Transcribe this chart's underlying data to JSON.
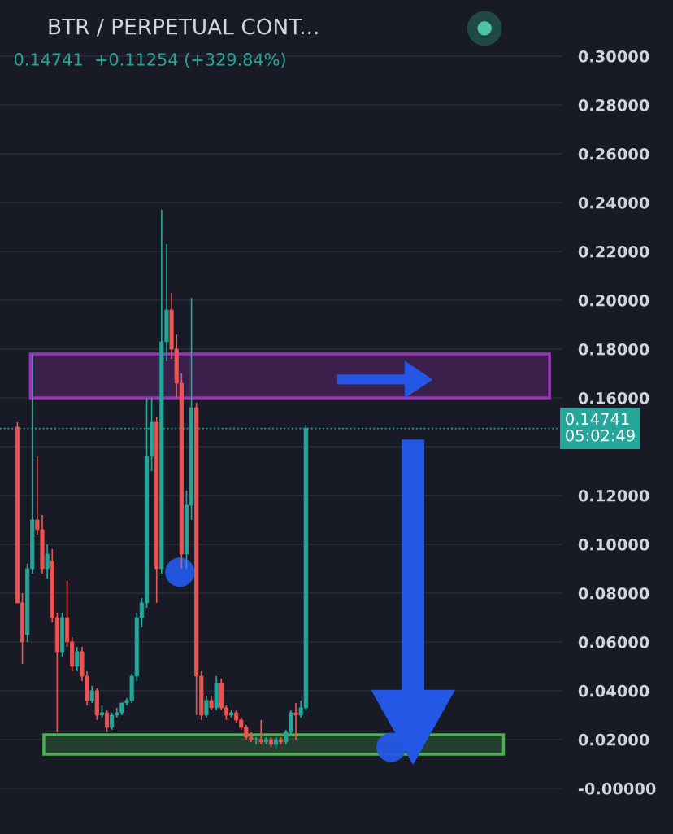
{
  "chart_data": {
    "type": "candlestick",
    "title": "BTR / PERPETUAL CONT...",
    "subtitle": "0.14741  +0.11254 (+329.84%)",
    "categories": [
      null,
      null,
      null,
      null,
      null,
      null,
      null,
      null,
      null,
      null,
      null,
      null,
      null,
      null,
      null,
      null,
      null,
      null,
      null,
      null,
      null,
      null,
      null,
      null,
      null,
      null,
      null,
      null,
      null,
      null,
      null,
      null,
      null,
      null,
      null,
      null,
      null,
      null,
      null,
      null,
      null,
      null,
      null,
      null,
      null,
      null,
      null,
      null,
      null,
      null,
      null,
      null,
      null,
      null,
      null,
      null,
      null,
      null,
      null,
      null,
      null,
      null,
      null,
      null,
      null,
      null,
      null,
      null,
      null,
      null,
      null,
      null,
      null,
      null,
      null,
      null,
      null,
      null,
      null,
      null,
      null,
      null,
      null,
      null,
      null,
      null,
      null,
      null,
      null,
      null,
      null,
      null,
      null,
      null,
      null,
      null,
      null,
      null,
      null,
      null,
      null,
      null,
      null,
      null,
      null,
      null,
      null,
      null,
      null,
      null,
      null,
      null,
      null
    ],
    "ohlc": [
      null,
      null,
      null,
      [
        0.148,
        0.15,
        0.076,
        0.076
      ],
      [
        0.076,
        0.08,
        0.051,
        0.06
      ],
      [
        0.063,
        0.092,
        0.06,
        0.09
      ],
      [
        0.09,
        0.178,
        0.088,
        0.11
      ],
      [
        0.11,
        0.136,
        0.104,
        0.106
      ],
      [
        0.106,
        0.112,
        0.088,
        0.09
      ],
      [
        0.09,
        0.1,
        0.086,
        0.096
      ],
      [
        0.093,
        0.098,
        0.068,
        0.07
      ],
      [
        0.07,
        0.072,
        0.023,
        0.056
      ],
      [
        0.056,
        0.072,
        0.054,
        0.07
      ],
      [
        0.07,
        0.085,
        0.058,
        0.06
      ],
      [
        0.06,
        0.062,
        0.048,
        0.05
      ],
      [
        0.05,
        0.058,
        0.048,
        0.056
      ],
      [
        0.056,
        0.058,
        0.044,
        0.046
      ],
      [
        0.046,
        0.048,
        0.034,
        0.036
      ],
      [
        0.036,
        0.042,
        0.035,
        0.04
      ],
      [
        0.04,
        0.041,
        0.028,
        0.03
      ],
      [
        0.03,
        0.034,
        0.029,
        0.031
      ],
      [
        0.031,
        0.032,
        0.023,
        0.025
      ],
      [
        0.025,
        0.031,
        0.024,
        0.03
      ],
      [
        0.03,
        0.033,
        0.029,
        0.031
      ],
      [
        0.031,
        0.035,
        0.03,
        0.035
      ],
      [
        0.035,
        0.037,
        0.034,
        0.036
      ],
      [
        0.036,
        0.047,
        0.035,
        0.046
      ],
      [
        0.046,
        0.072,
        0.044,
        0.07
      ],
      [
        0.07,
        0.078,
        0.066,
        0.076
      ],
      [
        0.076,
        0.16,
        0.074,
        0.136
      ],
      [
        0.136,
        0.16,
        0.13,
        0.15
      ],
      [
        0.15,
        0.152,
        0.076,
        0.09
      ],
      [
        0.09,
        0.237,
        0.088,
        0.183
      ],
      [
        0.183,
        0.223,
        0.175,
        0.196
      ],
      [
        0.196,
        0.203,
        0.176,
        0.18
      ],
      [
        0.18,
        0.186,
        0.16,
        0.166
      ],
      [
        0.166,
        0.17,
        0.09,
        0.096
      ],
      [
        0.096,
        0.122,
        0.09,
        0.116
      ],
      [
        0.116,
        0.201,
        0.11,
        0.156
      ],
      [
        0.156,
        0.158,
        0.03,
        0.046
      ],
      [
        0.046,
        0.048,
        0.028,
        0.03
      ],
      [
        0.03,
        0.038,
        0.029,
        0.036
      ],
      [
        0.036,
        0.038,
        0.032,
        0.033
      ],
      [
        0.033,
        0.046,
        0.032,
        0.043
      ],
      [
        0.043,
        0.045,
        0.032,
        0.033
      ],
      [
        0.033,
        0.034,
        0.028,
        0.03
      ],
      [
        0.03,
        0.032,
        0.029,
        0.031
      ],
      [
        0.031,
        0.032,
        0.027,
        0.028
      ],
      [
        0.028,
        0.029,
        0.024,
        0.025
      ],
      [
        0.025,
        0.026,
        0.02,
        0.021
      ],
      [
        0.021,
        0.023,
        0.019,
        0.02
      ],
      [
        0.02,
        0.021,
        0.018,
        0.02
      ],
      [
        0.02,
        0.028,
        0.018,
        0.019
      ],
      [
        0.019,
        0.021,
        0.018,
        0.02
      ],
      [
        0.02,
        0.021,
        0.017,
        0.018
      ],
      [
        0.018,
        0.021,
        0.016,
        0.02
      ],
      [
        0.02,
        0.021,
        0.018,
        0.019
      ],
      [
        0.019,
        0.024,
        0.018,
        0.023
      ],
      [
        0.023,
        0.032,
        0.022,
        0.031
      ],
      [
        0.031,
        0.035,
        0.02,
        0.03
      ],
      [
        0.03,
        0.036,
        0.029,
        0.033
      ],
      [
        0.033,
        0.149,
        0.032,
        0.14741
      ],
      null,
      null,
      null,
      null,
      null,
      null,
      null,
      null,
      null,
      null,
      null,
      null,
      null,
      null,
      null,
      null,
      null,
      null,
      null,
      null,
      null,
      null,
      null,
      null,
      null,
      null,
      null,
      null,
      null,
      null,
      null,
      null,
      null,
      null,
      null,
      null,
      null,
      null,
      null,
      null,
      null,
      null,
      null,
      null,
      null,
      null,
      null,
      null,
      null,
      null,
      null
    ],
    "colors": [
      null,
      null,
      null,
      "#ef5350",
      "#ef5350",
      "#26a69a",
      "#26a69a",
      "#ef5350",
      "#ef5350",
      "#26a69a",
      "#ef5350",
      "#ef5350",
      "#26a69a",
      "#ef5350",
      "#ef5350",
      "#26a69a",
      "#ef5350",
      "#ef5350",
      "#26a69a",
      "#ef5350",
      "#26a69a",
      "#ef5350",
      "#26a69a",
      "#26a69a",
      "#26a69a",
      "#26a69a",
      "#26a69a",
      "#26a69a",
      "#26a69a",
      "#26a69a",
      "#26a69a",
      "#ef5350",
      "#26a69a",
      "#26a69a",
      "#ef5350",
      "#ef5350",
      "#ef5350",
      "#26a69a",
      "#26a69a",
      "#ef5350",
      "#ef5350",
      "#26a69a",
      "#ef5350",
      "#26a69a",
      "#ef5350",
      "#ef5350",
      "#26a69a",
      "#ef5350",
      "#ef5350",
      "#ef5350",
      "#ef5350",
      "#26a69a",
      "#ef5350",
      "#26a69a",
      "#ef5350",
      "#26a69a",
      "#ef5350",
      "#26a69a",
      "#26a69a",
      "#ef5350",
      "#26a69a",
      "#26a69a",
      null,
      null,
      null,
      null,
      null,
      null,
      null,
      null,
      null,
      null,
      null,
      null,
      null,
      null,
      null,
      null,
      null,
      null,
      null,
      null,
      null,
      null,
      null,
      null,
      null,
      null,
      null,
      null,
      null,
      null,
      null,
      null,
      null,
      null,
      null,
      null,
      null,
      null,
      null,
      null,
      null,
      null,
      null,
      null,
      null,
      null,
      null,
      null,
      null,
      null,
      null
    ],
    "ylim": [
      -0.0187,
      0.323
    ],
    "yticks": [
      {
        "value": 0,
        "label": "-0.00000"
      },
      {
        "value": 0.02,
        "label": "0.02000"
      },
      {
        "value": 0.04,
        "label": "0.04000"
      },
      {
        "value": 0.06,
        "label": "0.06000"
      },
      {
        "value": 0.08,
        "label": "0.08000"
      },
      {
        "value": 0.1,
        "label": "0.10000"
      },
      {
        "value": 0.12,
        "label": "0.12000"
      },
      {
        "value": 0.14,
        "label": null
      },
      {
        "value": 0.16,
        "label": "0.16000"
      },
      {
        "value": 0.18,
        "label": "0.18000"
      },
      {
        "value": 0.2,
        "label": "0.20000"
      },
      {
        "value": 0.22,
        "label": "0.22000"
      },
      {
        "value": 0.24,
        "label": "0.24000"
      },
      {
        "value": 0.26,
        "label": "0.26000"
      },
      {
        "value": 0.28,
        "label": "0.28000"
      },
      {
        "value": 0.3,
        "label": "0.30000"
      }
    ],
    "grid": "y",
    "ref_lines": [
      {
        "axis": "y",
        "value": 0.14741,
        "label": "0.14741\n05:02:49",
        "color": "#26a69a",
        "line_style": "dotted"
      }
    ],
    "bands": [
      {
        "axis": "y",
        "from": 0.16,
        "to": 0.178,
        "color": "#a030c0"
      },
      {
        "axis": "y",
        "from": 0.014,
        "to": 0.022,
        "color": "#4caf50"
      }
    ]
  }
}
